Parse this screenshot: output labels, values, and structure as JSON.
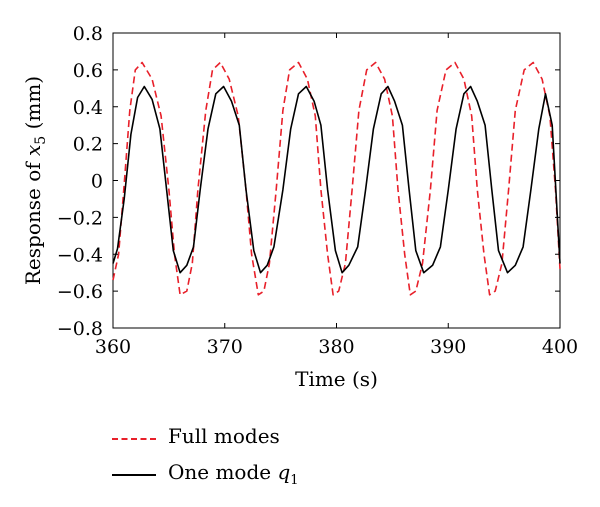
{
  "chart_data": {
    "type": "line",
    "title": "",
    "xlabel": "Time (s)",
    "ylabel_prefix": "Response of ",
    "ylabel_var": "x",
    "ylabel_sub": "5",
    "ylabel_suffix": " (mm)",
    "xlim": [
      360,
      400
    ],
    "ylim": [
      -0.8,
      0.8
    ],
    "xticks": [
      360,
      370,
      380,
      390,
      400
    ],
    "yticks": [
      -0.8,
      -0.6,
      -0.4,
      -0.2,
      0,
      0.2,
      0.4,
      0.6,
      0.8
    ],
    "ytick_labels": [
      "−0.8",
      "−0.6",
      "−0.4",
      "−0.2",
      "0",
      "0.2",
      "0.4",
      "0.6",
      "0.8"
    ],
    "grid": false,
    "legend_position": "bottom",
    "series": [
      {
        "name": "Full modes",
        "style": "dashed",
        "color": "#e8202a",
        "x": [
          360,
          360.5,
          361,
          361.5,
          362,
          362.6,
          363.5,
          364.3,
          365,
          365.5,
          366,
          366.6,
          367.1,
          367.6,
          368.3,
          368.9,
          369.6,
          370.4,
          371.2,
          371.9,
          372.4,
          373,
          373.5,
          374,
          374.6,
          375.2,
          375.8,
          376.6,
          377.4,
          378.1,
          378.6,
          379.2,
          379.7,
          380.2,
          380.8,
          381.4,
          382,
          382.7,
          383.5,
          384.3,
          385,
          385.5,
          386.1,
          386.6,
          387.1,
          387.7,
          388.4,
          389,
          389.8,
          390.6,
          391.4,
          392.1,
          392.6,
          393.2,
          393.7,
          394.2,
          394.8,
          395.4,
          396,
          396.8,
          397.6,
          398.4,
          399.1,
          399.6,
          400
        ],
        "y": [
          -0.54,
          -0.4,
          -0.02,
          0.38,
          0.6,
          0.64,
          0.55,
          0.35,
          -0.05,
          -0.4,
          -0.62,
          -0.6,
          -0.45,
          -0.05,
          0.38,
          0.6,
          0.64,
          0.55,
          0.35,
          -0.05,
          -0.4,
          -0.62,
          -0.6,
          -0.45,
          -0.05,
          0.38,
          0.6,
          0.64,
          0.55,
          0.35,
          -0.05,
          -0.4,
          -0.62,
          -0.6,
          -0.45,
          -0.05,
          0.38,
          0.6,
          0.64,
          0.55,
          0.35,
          -0.05,
          -0.4,
          -0.62,
          -0.6,
          -0.45,
          -0.05,
          0.38,
          0.6,
          0.64,
          0.55,
          0.35,
          -0.05,
          -0.4,
          -0.62,
          -0.6,
          -0.45,
          -0.05,
          0.38,
          0.6,
          0.64,
          0.55,
          0.35,
          -0.05,
          -0.48
        ]
      },
      {
        "name_prefix": "One mode ",
        "name_var": "q",
        "name_sub": "1",
        "style": "solid",
        "color": "#000000",
        "x": [
          360,
          360.4,
          361,
          361.6,
          362.2,
          362.8,
          363.5,
          364.2,
          364.8,
          365.4,
          366,
          366.6,
          367.2,
          367.8,
          368.5,
          369.2,
          369.9,
          370.6,
          371.3,
          371.9,
          372.6,
          373.2,
          373.8,
          374.4,
          375.2,
          375.9,
          376.6,
          377.3,
          378,
          378.6,
          379.2,
          379.9,
          380.5,
          381.1,
          381.9,
          382.6,
          383.3,
          384,
          384.6,
          385.2,
          385.9,
          386.5,
          387.1,
          387.8,
          388.6,
          389.3,
          390,
          390.7,
          391.4,
          392,
          392.6,
          393.3,
          393.9,
          394.5,
          395.3,
          396,
          396.7,
          397.4,
          398.1,
          398.7,
          399.3,
          400
        ],
        "y": [
          -0.45,
          -0.37,
          -0.1,
          0.25,
          0.45,
          0.51,
          0.44,
          0.28,
          -0.05,
          -0.38,
          -0.5,
          -0.46,
          -0.36,
          -0.05,
          0.28,
          0.47,
          0.51,
          0.43,
          0.3,
          -0.05,
          -0.38,
          -0.5,
          -0.46,
          -0.36,
          -0.05,
          0.28,
          0.47,
          0.51,
          0.43,
          0.3,
          -0.05,
          -0.38,
          -0.5,
          -0.46,
          -0.36,
          -0.05,
          0.28,
          0.47,
          0.51,
          0.43,
          0.3,
          -0.05,
          -0.38,
          -0.5,
          -0.46,
          -0.36,
          -0.05,
          0.28,
          0.47,
          0.51,
          0.43,
          0.3,
          -0.05,
          -0.38,
          -0.5,
          -0.46,
          -0.36,
          -0.05,
          0.28,
          0.47,
          0.3,
          -0.45
        ]
      }
    ]
  }
}
